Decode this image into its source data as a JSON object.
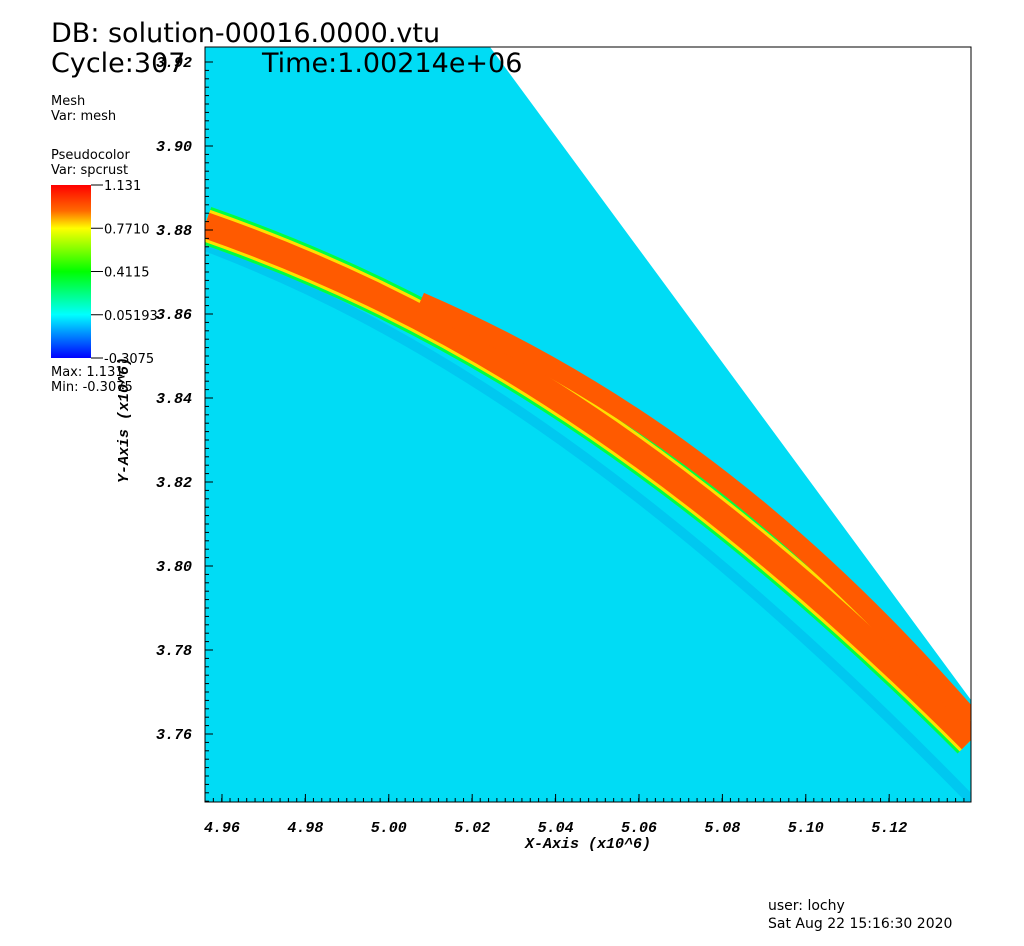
{
  "header": {
    "db": "DB: solution-00016.0000.vtu",
    "cycle": "Cycle:307",
    "time": "Time:1.00214e+06"
  },
  "legend": {
    "mesh_title": "Mesh",
    "mesh_var": "Var: mesh",
    "pc_title": "Pseudocolor",
    "pc_var": "Var: spcrust",
    "colorbar_labels": [
      "1.131",
      "0.7710",
      "0.4115",
      "0.05193",
      "-0.3075"
    ],
    "max": "Max:  1.131",
    "min": "Min: -0.3075"
  },
  "axes": {
    "x_label": "X-Axis (x10^6)",
    "y_label": "Y-Axis (x10^6)",
    "x_ticks": [
      "4.96",
      "4.98",
      "5.00",
      "5.02",
      "5.04",
      "5.06",
      "5.08",
      "5.10",
      "5.12"
    ],
    "y_ticks": [
      "3.92",
      "3.90",
      "3.88",
      "3.86",
      "3.84",
      "3.82",
      "3.80",
      "3.78",
      "3.76"
    ]
  },
  "footer": {
    "user": "user: lochy",
    "date": "Sat Aug 22 15:16:30 2020"
  }
}
